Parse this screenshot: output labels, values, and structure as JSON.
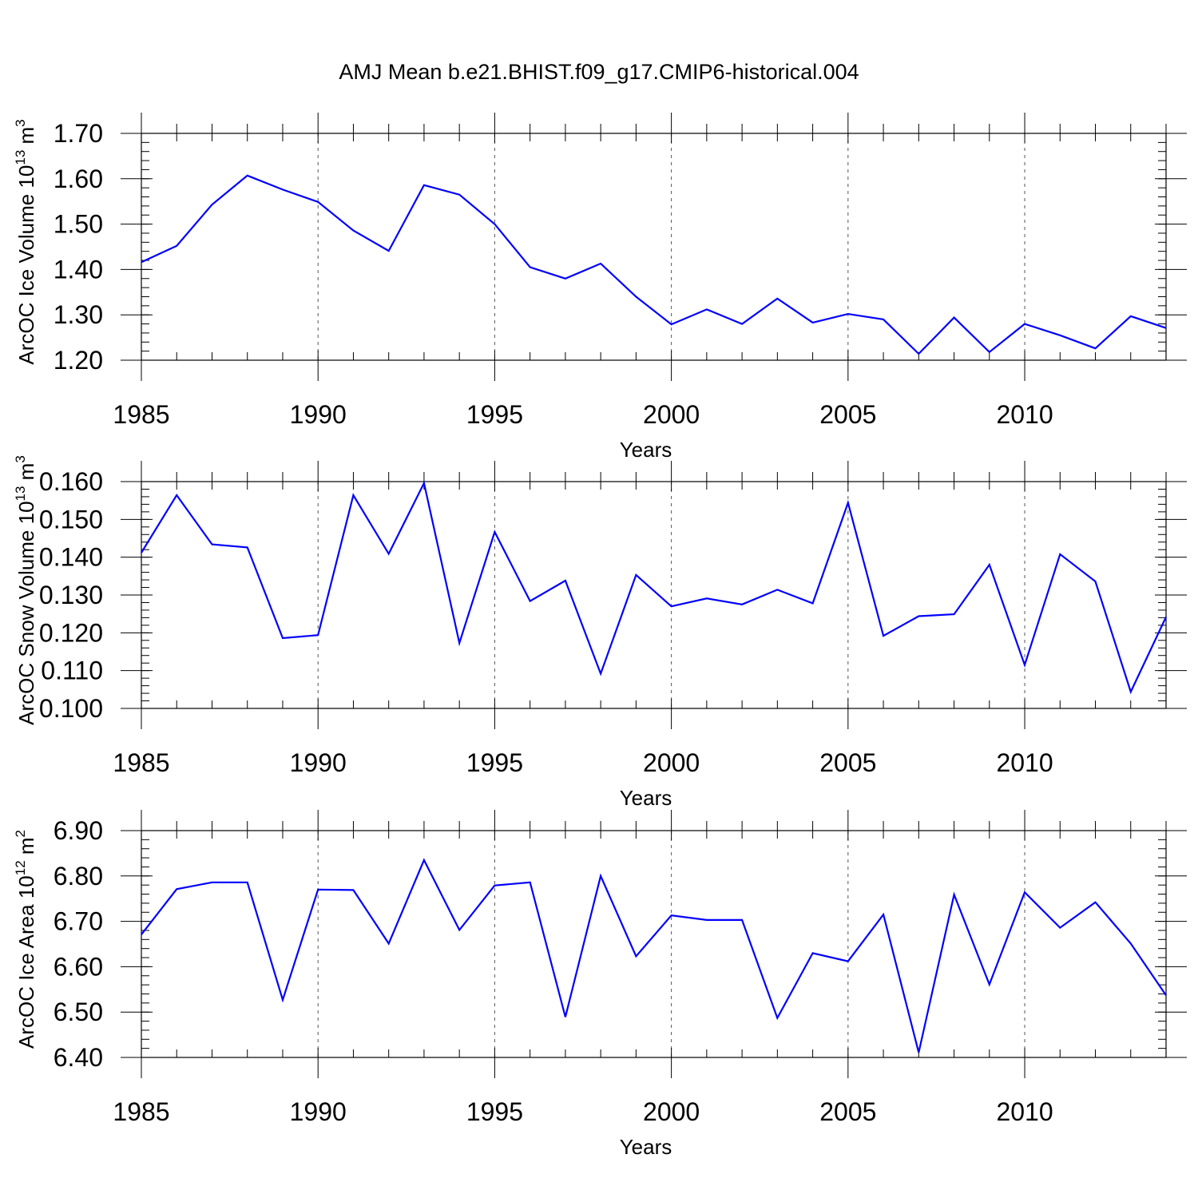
{
  "title": "AMJ Mean b.e21.BHIST.f09_g17.CMIP6-historical.004",
  "colors": {
    "series": "#0000ff",
    "axes": "#000000"
  },
  "chart_data": [
    {
      "type": "line",
      "title": "",
      "xlabel": "Years",
      "ylabel_main": "ArcOC Ice Volume 10",
      "ylabel_exp": "13",
      "ylabel_unit": " m",
      "ylabel_unit_exp": "3",
      "xlim": [
        1985,
        2014
      ],
      "ylim": [
        1.2,
        1.7
      ],
      "xticks": [
        1985,
        1990,
        1995,
        2000,
        2005,
        2010
      ],
      "xtick_labels": [
        "1985",
        "1990",
        "1995",
        "2000",
        "2005",
        "2010"
      ],
      "yticks": [
        1.2,
        1.3,
        1.4,
        1.5,
        1.6,
        1.7
      ],
      "ytick_labels": [
        "1.20",
        "1.30",
        "1.40",
        "1.50",
        "1.60",
        "1.70"
      ],
      "yminor_step": 0.02,
      "grid": "vertical-dashed",
      "x": [
        1985,
        1986,
        1987,
        1988,
        1989,
        1990,
        1991,
        1992,
        1993,
        1994,
        1995,
        1996,
        1997,
        1998,
        1999,
        2000,
        2001,
        2002,
        2003,
        2004,
        2005,
        2006,
        2007,
        2008,
        2009,
        2010,
        2011,
        2012,
        2013,
        2014
      ],
      "y": [
        1.416,
        1.452,
        1.543,
        1.607,
        1.576,
        1.549,
        1.486,
        1.441,
        1.586,
        1.565,
        1.5,
        1.405,
        1.38,
        1.413,
        1.34,
        1.279,
        1.312,
        1.28,
        1.336,
        1.283,
        1.302,
        1.29,
        1.214,
        1.294,
        1.218,
        1.28,
        1.255,
        1.226,
        1.297,
        1.271
      ]
    },
    {
      "type": "line",
      "title": "",
      "xlabel": "Years",
      "ylabel_main": "ArcOC Snow Volume 10",
      "ylabel_exp": "13",
      "ylabel_unit": " m",
      "ylabel_unit_exp": "3",
      "xlim": [
        1985,
        2014
      ],
      "ylim": [
        0.1,
        0.16
      ],
      "xticks": [
        1985,
        1990,
        1995,
        2000,
        2005,
        2010
      ],
      "xtick_labels": [
        "1985",
        "1990",
        "1995",
        "2000",
        "2005",
        "2010"
      ],
      "yticks": [
        0.1,
        0.11,
        0.12,
        0.13,
        0.14,
        0.15,
        0.16
      ],
      "ytick_labels": [
        "0.100",
        "0.110",
        "0.120",
        "0.130",
        "0.140",
        "0.150",
        "0.160"
      ],
      "yminor_step": 0.002,
      "grid": "vertical-dashed",
      "x": [
        1985,
        1986,
        1987,
        1988,
        1989,
        1990,
        1991,
        1992,
        1993,
        1994,
        1995,
        1996,
        1997,
        1998,
        1999,
        2000,
        2001,
        2002,
        2003,
        2004,
        2005,
        2006,
        2007,
        2008,
        2009,
        2010,
        2011,
        2012,
        2013,
        2014
      ],
      "y": [
        0.1412,
        0.1564,
        0.1434,
        0.1426,
        0.1186,
        0.1194,
        0.1564,
        0.1409,
        0.1596,
        0.1173,
        0.1467,
        0.1284,
        0.1338,
        0.1092,
        0.1353,
        0.127,
        0.1291,
        0.1275,
        0.1314,
        0.1278,
        0.1544,
        0.1192,
        0.1244,
        0.1249,
        0.138,
        0.1115,
        0.1408,
        0.1336,
        0.1044,
        0.1242
      ]
    },
    {
      "type": "line",
      "title": "",
      "xlabel": "Years",
      "ylabel_main": "ArcOC Ice Area 10",
      "ylabel_exp": "12",
      "ylabel_unit": " m",
      "ylabel_unit_exp": "2",
      "xlim": [
        1985,
        2014
      ],
      "ylim": [
        6.4,
        6.9
      ],
      "xticks": [
        1985,
        1990,
        1995,
        2000,
        2005,
        2010
      ],
      "xtick_labels": [
        "1985",
        "1990",
        "1995",
        "2000",
        "2005",
        "2010"
      ],
      "yticks": [
        6.4,
        6.5,
        6.6,
        6.7,
        6.8,
        6.9
      ],
      "ytick_labels": [
        "6.40",
        "6.50",
        "6.60",
        "6.70",
        "6.80",
        "6.90"
      ],
      "yminor_step": 0.02,
      "grid": "vertical-dashed",
      "x": [
        1985,
        1986,
        1987,
        1988,
        1989,
        1990,
        1991,
        1992,
        1993,
        1994,
        1995,
        1996,
        1997,
        1998,
        1999,
        2000,
        2001,
        2002,
        2003,
        2004,
        2005,
        2006,
        2007,
        2008,
        2009,
        2010,
        2011,
        2012,
        2013,
        2014
      ],
      "y": [
        6.671,
        6.771,
        6.786,
        6.786,
        6.527,
        6.77,
        6.769,
        6.651,
        6.835,
        6.681,
        6.779,
        6.786,
        6.489,
        6.8,
        6.623,
        6.713,
        6.703,
        6.703,
        6.487,
        6.63,
        6.612,
        6.715,
        6.411,
        6.759,
        6.561,
        6.764,
        6.686,
        6.742,
        6.651,
        6.537
      ]
    }
  ]
}
